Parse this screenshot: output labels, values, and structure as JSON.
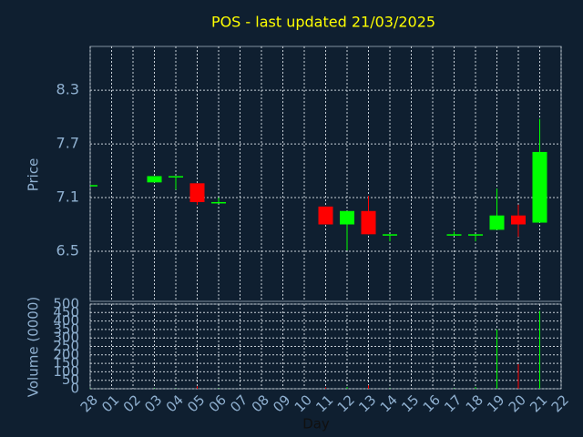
{
  "chart_data": {
    "type": "candlestick",
    "title": "POS - last updated 21/03/2025",
    "y_label": "Price",
    "volume_label": "Volume (0000)",
    "x_label": "Day",
    "categories": [
      "28",
      "01",
      "02",
      "03",
      "04",
      "05",
      "06",
      "07",
      "08",
      "09",
      "10",
      "11",
      "12",
      "13",
      "14",
      "15",
      "16",
      "17",
      "18",
      "19",
      "20",
      "21",
      "22"
    ],
    "open": [
      7.24,
      null,
      null,
      7.27,
      7.33,
      7.26,
      7.04,
      null,
      null,
      null,
      null,
      7.0,
      6.8,
      6.95,
      6.68,
      null,
      null,
      6.68,
      6.68,
      6.74,
      6.9,
      6.82,
      null
    ],
    "high": [
      7.24,
      null,
      null,
      7.34,
      7.34,
      7.26,
      7.1,
      null,
      null,
      null,
      null,
      7.0,
      6.95,
      7.12,
      6.69,
      null,
      null,
      6.72,
      6.69,
      7.2,
      7.02,
      7.98,
      null
    ],
    "low": [
      7.24,
      null,
      null,
      7.27,
      7.19,
      7.02,
      7.04,
      null,
      null,
      null,
      null,
      6.8,
      6.51,
      6.69,
      6.61,
      null,
      null,
      6.68,
      6.61,
      6.74,
      6.66,
      6.82,
      null
    ],
    "close": [
      7.24,
      null,
      null,
      7.34,
      7.34,
      7.05,
      7.05,
      null,
      null,
      null,
      null,
      6.8,
      6.95,
      6.69,
      6.69,
      null,
      null,
      6.69,
      6.69,
      6.9,
      6.8,
      7.61,
      null
    ],
    "volume": [
      2,
      null,
      null,
      3,
      2,
      15,
      3,
      null,
      null,
      null,
      null,
      8,
      10,
      20,
      3,
      null,
      null,
      3,
      10,
      350,
      145,
      460,
      null
    ],
    "up_color": "#00ff00",
    "down_color": "#ff0000",
    "ylim": [
      5.94,
      8.79
    ],
    "yticks": [
      6.5,
      7.1,
      7.7,
      8.3
    ],
    "volume_ylim": [
      0,
      500
    ],
    "volume_yticks": [
      0,
      50,
      100,
      150,
      200,
      250,
      300,
      350,
      400,
      450,
      500
    ],
    "grid": true
  }
}
